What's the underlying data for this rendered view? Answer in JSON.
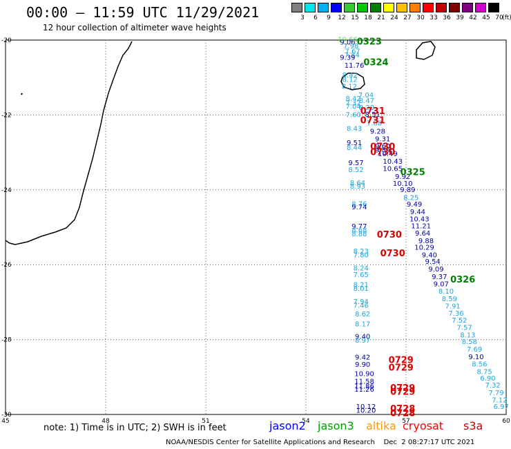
{
  "title": "00:00 – 11:59 UTC 11/29/2021",
  "subtitle": "12 hour collection of altimeter wave heights",
  "scale": {
    "unit": "(ft)",
    "bins": [
      {
        "label": "3",
        "color": "#7f7f7f"
      },
      {
        "label": "6",
        "color": "#00e5ee"
      },
      {
        "label": "9",
        "color": "#00b0f0"
      },
      {
        "label": "12",
        "color": "#0000ff"
      },
      {
        "label": "15",
        "color": "#33cc33"
      },
      {
        "label": "18",
        "color": "#00c800"
      },
      {
        "label": "21",
        "color": "#008000"
      },
      {
        "label": "24",
        "color": "#ffff00"
      },
      {
        "label": "27",
        "color": "#ffc000"
      },
      {
        "label": "30",
        "color": "#ff8000"
      },
      {
        "label": "33",
        "color": "#ff0000"
      },
      {
        "label": "36",
        "color": "#c00000"
      },
      {
        "label": "39",
        "color": "#800000"
      },
      {
        "label": "42",
        "color": "#800080"
      },
      {
        "label": "45",
        "color": "#d000d0"
      },
      {
        "label": "70",
        "color": "#000000"
      }
    ]
  },
  "axes": {
    "lon_ticks": [
      "45",
      "48",
      "51",
      "54",
      "57",
      "60"
    ],
    "lat_ticks": [
      "-20",
      "-22",
      "-24",
      "-26",
      "-28",
      "-30"
    ]
  },
  "colors": {
    "jason2": "#0000ff",
    "jason3": "#00a000",
    "altika": "#ff9900",
    "cryosat": "#ff0000",
    "s3a": "#cc0000",
    "cyan": "#1aa7e0",
    "navy": "#0000aa",
    "green": "#008000"
  },
  "points": [
    {
      "lon": 55.25,
      "lat": -20.05,
      "v": "10.66",
      "c": "#66cc66"
    },
    {
      "lon": 55.25,
      "lat": -20.12,
      "v": "9.06",
      "c": "#0000aa"
    },
    {
      "lon": 55.35,
      "lat": -20.22,
      "v": "7.98",
      "c": "#1aa7e0"
    },
    {
      "lon": 55.4,
      "lat": -20.36,
      "v": "7.67",
      "c": "#1aa7e0"
    },
    {
      "lon": 55.38,
      "lat": -20.46,
      "v": "7.84",
      "c": "#1aa7e0"
    },
    {
      "lon": 55.25,
      "lat": -20.53,
      "v": "9.39",
      "c": "#0000aa"
    },
    {
      "lon": 55.45,
      "lat": -20.74,
      "v": "11.76",
      "c": "#0000aa"
    },
    {
      "lon": 55.32,
      "lat": -21.0,
      "v": "8.42",
      "c": "#1aa7e0"
    },
    {
      "lon": 55.32,
      "lat": -21.12,
      "v": "8.12",
      "c": "#1aa7e0"
    },
    {
      "lon": 55.3,
      "lat": -21.3,
      "v": "8.12",
      "c": "#1aa7e0"
    },
    {
      "lon": 55.8,
      "lat": -21.53,
      "v": "7.04",
      "c": "#1aa7e0"
    },
    {
      "lon": 55.42,
      "lat": -21.62,
      "v": "8.42",
      "c": "#1aa7e0"
    },
    {
      "lon": 55.42,
      "lat": -21.74,
      "v": "7.32",
      "c": "#1aa7e0"
    },
    {
      "lon": 55.82,
      "lat": -21.68,
      "v": "8.47",
      "c": "#1aa7e0"
    },
    {
      "lon": 55.42,
      "lat": -21.84,
      "v": "7.04",
      "c": "#1aa7e0"
    },
    {
      "lon": 55.82,
      "lat": -21.86,
      "v": "8.20",
      "c": "#1aa7e0"
    },
    {
      "lon": 55.42,
      "lat": -22.06,
      "v": "7.60",
      "c": "#1aa7e0"
    },
    {
      "lon": 56.0,
      "lat": -22.05,
      "v": "8.51",
      "c": "#0000aa"
    },
    {
      "lon": 56.05,
      "lat": -22.28,
      "v": "7.88",
      "c": "#1aa7e0"
    },
    {
      "lon": 55.45,
      "lat": -22.43,
      "v": "8.43",
      "c": "#1aa7e0"
    },
    {
      "lon": 56.15,
      "lat": -22.5,
      "v": "9.28",
      "c": "#0000aa"
    },
    {
      "lon": 56.3,
      "lat": -22.7,
      "v": "9.31",
      "c": "#0000aa"
    },
    {
      "lon": 55.45,
      "lat": -22.8,
      "v": "9.51",
      "c": "#0000aa"
    },
    {
      "lon": 55.45,
      "lat": -22.93,
      "v": "8.44",
      "c": "#1aa7e0"
    },
    {
      "lon": 56.3,
      "lat": -22.9,
      "v": "9.60",
      "c": "#0000aa"
    },
    {
      "lon": 56.3,
      "lat": -23.0,
      "v": "9.89",
      "c": "#0000aa"
    },
    {
      "lon": 56.45,
      "lat": -23.1,
      "v": "10.49",
      "c": "#0000aa"
    },
    {
      "lon": 56.6,
      "lat": -23.3,
      "v": "10.43",
      "c": "#0000aa"
    },
    {
      "lon": 55.5,
      "lat": -23.34,
      "v": "9.57",
      "c": "#0000aa"
    },
    {
      "lon": 55.5,
      "lat": -23.52,
      "v": "8.52",
      "c": "#1aa7e0"
    },
    {
      "lon": 56.6,
      "lat": -23.5,
      "v": "10.65",
      "c": "#0000aa"
    },
    {
      "lon": 56.9,
      "lat": -23.71,
      "v": "9.92",
      "c": "#0000aa"
    },
    {
      "lon": 56.9,
      "lat": -23.89,
      "v": "10.10",
      "c": "#0000aa"
    },
    {
      "lon": 55.55,
      "lat": -23.87,
      "v": "8.64",
      "c": "#1aa7e0"
    },
    {
      "lon": 55.55,
      "lat": -23.97,
      "v": "8.93",
      "c": "#1aa7e0"
    },
    {
      "lon": 57.05,
      "lat": -24.06,
      "v": "9.89",
      "c": "#0000aa"
    },
    {
      "lon": 57.15,
      "lat": -24.27,
      "v": "8.25",
      "c": "#1aa7e0"
    },
    {
      "lon": 55.6,
      "lat": -24.44,
      "v": "8.76",
      "c": "#1aa7e0"
    },
    {
      "lon": 55.6,
      "lat": -24.52,
      "v": "9.74",
      "c": "#0000aa"
    },
    {
      "lon": 57.25,
      "lat": -24.45,
      "v": "9.49",
      "c": "#0000aa"
    },
    {
      "lon": 57.35,
      "lat": -24.65,
      "v": "9.44",
      "c": "#0000aa"
    },
    {
      "lon": 57.4,
      "lat": -24.84,
      "v": "10.43",
      "c": "#0000aa"
    },
    {
      "lon": 55.6,
      "lat": -25.04,
      "v": "9.77",
      "c": "#0000aa"
    },
    {
      "lon": 57.45,
      "lat": -25.03,
      "v": "11.21",
      "c": "#0000aa"
    },
    {
      "lon": 55.6,
      "lat": -25.14,
      "v": "8.68",
      "c": "#1aa7e0"
    },
    {
      "lon": 55.6,
      "lat": -25.24,
      "v": "8.88",
      "c": "#1aa7e0"
    },
    {
      "lon": 57.5,
      "lat": -25.22,
      "v": "9.64",
      "c": "#0000aa"
    },
    {
      "lon": 57.6,
      "lat": -25.42,
      "v": "9.88",
      "c": "#0000aa"
    },
    {
      "lon": 57.55,
      "lat": -25.6,
      "v": "10.29",
      "c": "#0000aa"
    },
    {
      "lon": 55.65,
      "lat": -25.7,
      "v": "8.23",
      "c": "#1aa7e0"
    },
    {
      "lon": 55.65,
      "lat": -25.8,
      "v": "7.80",
      "c": "#1aa7e0"
    },
    {
      "lon": 57.7,
      "lat": -25.8,
      "v": "9.40",
      "c": "#0000aa"
    },
    {
      "lon": 57.8,
      "lat": -25.98,
      "v": "9.54",
      "c": "#0000aa"
    },
    {
      "lon": 57.9,
      "lat": -26.18,
      "v": "9.09",
      "c": "#0000aa"
    },
    {
      "lon": 55.65,
      "lat": -26.15,
      "v": "8.24",
      "c": "#1aa7e0"
    },
    {
      "lon": 55.65,
      "lat": -26.33,
      "v": "7.65",
      "c": "#1aa7e0"
    },
    {
      "lon": 58.0,
      "lat": -26.38,
      "v": "9.37",
      "c": "#0000aa"
    },
    {
      "lon": 55.65,
      "lat": -26.6,
      "v": "8.21",
      "c": "#1aa7e0"
    },
    {
      "lon": 55.65,
      "lat": -26.7,
      "v": "8.01",
      "c": "#1aa7e0"
    },
    {
      "lon": 58.05,
      "lat": -26.58,
      "v": "9.07",
      "c": "#0000aa"
    },
    {
      "lon": 58.2,
      "lat": -26.77,
      "v": "8.10",
      "c": "#1aa7e0"
    },
    {
      "lon": 58.3,
      "lat": -26.97,
      "v": "8.59",
      "c": "#1aa7e0"
    },
    {
      "lon": 55.65,
      "lat": -27.05,
      "v": "7.94",
      "c": "#1aa7e0"
    },
    {
      "lon": 55.65,
      "lat": -27.15,
      "v": "7.46",
      "c": "#1aa7e0"
    },
    {
      "lon": 58.4,
      "lat": -27.17,
      "v": "7.91",
      "c": "#1aa7e0"
    },
    {
      "lon": 55.7,
      "lat": -27.38,
      "v": "8.62",
      "c": "#1aa7e0"
    },
    {
      "lon": 58.5,
      "lat": -27.36,
      "v": "7.36",
      "c": "#1aa7e0"
    },
    {
      "lon": 58.6,
      "lat": -27.55,
      "v": "7.52",
      "c": "#1aa7e0"
    },
    {
      "lon": 55.7,
      "lat": -27.65,
      "v": "8.17",
      "c": "#1aa7e0"
    },
    {
      "lon": 58.75,
      "lat": -27.74,
      "v": "7.57",
      "c": "#1aa7e0"
    },
    {
      "lon": 58.85,
      "lat": -27.94,
      "v": "8.13",
      "c": "#1aa7e0"
    },
    {
      "lon": 55.7,
      "lat": -27.98,
      "v": "9.40",
      "c": "#0000aa"
    },
    {
      "lon": 55.7,
      "lat": -28.08,
      "v": "8.97",
      "c": "#1aa7e0"
    },
    {
      "lon": 58.9,
      "lat": -28.12,
      "v": "8.58",
      "c": "#1aa7e0"
    },
    {
      "lon": 59.05,
      "lat": -28.32,
      "v": "7.69",
      "c": "#1aa7e0"
    },
    {
      "lon": 55.7,
      "lat": -28.53,
      "v": "9.42",
      "c": "#0000aa"
    },
    {
      "lon": 59.1,
      "lat": -28.52,
      "v": "9.10",
      "c": "#0000aa"
    },
    {
      "lon": 55.7,
      "lat": -28.73,
      "v": "9.90",
      "c": "#0000aa"
    },
    {
      "lon": 59.2,
      "lat": -28.72,
      "v": "8.56",
      "c": "#1aa7e0"
    },
    {
      "lon": 59.35,
      "lat": -28.92,
      "v": "8.75",
      "c": "#1aa7e0"
    },
    {
      "lon": 55.75,
      "lat": -28.98,
      "v": "10.90",
      "c": "#0000aa"
    },
    {
      "lon": 59.45,
      "lat": -29.1,
      "v": "6.90",
      "c": "#1aa7e0"
    },
    {
      "lon": 55.75,
      "lat": -29.18,
      "v": "11.58",
      "c": "#0000aa"
    },
    {
      "lon": 59.6,
      "lat": -29.28,
      "v": "7.32",
      "c": "#1aa7e0"
    },
    {
      "lon": 55.75,
      "lat": -29.31,
      "v": "11.86",
      "c": "#0000aa"
    },
    {
      "lon": 55.75,
      "lat": -29.39,
      "v": "11.26",
      "c": "#0000aa"
    },
    {
      "lon": 59.7,
      "lat": -29.48,
      "v": "7.79",
      "c": "#1aa7e0"
    },
    {
      "lon": 59.8,
      "lat": -29.68,
      "v": "7.12",
      "c": "#1aa7e0"
    },
    {
      "lon": 59.85,
      "lat": -29.85,
      "v": "6.97",
      "c": "#1aa7e0"
    },
    {
      "lon": 55.8,
      "lat": -29.85,
      "v": "10.12",
      "c": "#0000aa"
    },
    {
      "lon": 55.8,
      "lat": -29.95,
      "v": "10.20",
      "c": "#0000aa"
    }
  ],
  "times": [
    {
      "lon": 55.9,
      "lat": -20.05,
      "v": "0323",
      "c": "#008000"
    },
    {
      "lon": 56.1,
      "lat": -20.6,
      "v": "0324",
      "c": "#008000"
    },
    {
      "lon": 56.0,
      "lat": -21.9,
      "v": "0731",
      "c": "#dd0000"
    },
    {
      "lon": 56.0,
      "lat": -22.15,
      "v": "0731",
      "c": "#dd0000"
    },
    {
      "lon": 56.3,
      "lat": -22.85,
      "v": "0730",
      "c": "#dd0000"
    },
    {
      "lon": 56.3,
      "lat": -23.0,
      "v": "0730",
      "c": "#dd0000"
    },
    {
      "lon": 57.2,
      "lat": -23.53,
      "v": "0325",
      "c": "#008000"
    },
    {
      "lon": 56.5,
      "lat": -25.2,
      "v": "0730",
      "c": "#dd0000"
    },
    {
      "lon": 56.6,
      "lat": -25.7,
      "v": "0730",
      "c": "#dd0000"
    },
    {
      "lon": 58.7,
      "lat": -26.4,
      "v": "0326",
      "c": "#008000"
    },
    {
      "lon": 56.85,
      "lat": -28.55,
      "v": "0729",
      "c": "#dd0000"
    },
    {
      "lon": 56.85,
      "lat": -28.75,
      "v": "0729",
      "c": "#dd0000"
    },
    {
      "lon": 56.9,
      "lat": -29.3,
      "v": "0729",
      "c": "#dd0000"
    },
    {
      "lon": 56.9,
      "lat": -29.4,
      "v": "0729",
      "c": "#dd0000"
    },
    {
      "lon": 56.9,
      "lat": -29.85,
      "v": "0728",
      "c": "#dd0000"
    },
    {
      "lon": 56.9,
      "lat": -29.97,
      "v": "0728",
      "c": "#dd0000"
    }
  ],
  "legend": {
    "note": "note: 1) Time is in UTC; 2) SWH is in feet",
    "sats": [
      {
        "name": "jason2",
        "color": "#0000ff"
      },
      {
        "name": "jason3",
        "color": "#00a000"
      },
      {
        "name": "altika",
        "color": "#ff9900"
      },
      {
        "name": "cryosat",
        "color": "#ff0000"
      },
      {
        "name": "s3a",
        "color": "#cc0000"
      }
    ]
  },
  "footer": "NOAA/NESDIS Center for Satellite Applications and Research    Dec  2 08:27:17 UTC 2021"
}
